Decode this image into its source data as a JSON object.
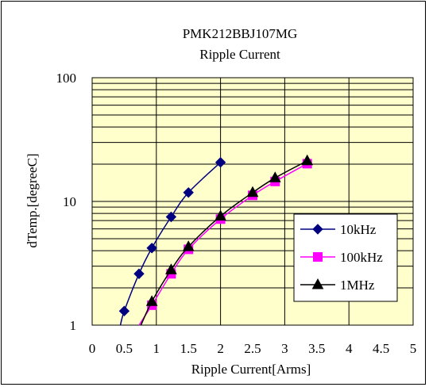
{
  "chart_data": {
    "type": "line",
    "title": "PMK212BBJ107MG",
    "subtitle": "Ripple Current",
    "xlabel": "Ripple Current[Arms]",
    "ylabel": "dTemp.[degreeC]",
    "xlim": [
      0,
      5
    ],
    "ylim": [
      1,
      100
    ],
    "y_scale": "log",
    "x_ticks": [
      "0",
      "0.5",
      "1",
      "1.5",
      "2",
      "2.5",
      "3",
      "3.5",
      "4",
      "4.5",
      "5"
    ],
    "y_ticks": [
      "1",
      "10",
      "100"
    ],
    "grid": true,
    "plot_background": "#ffffcc",
    "legend_position": "right-center",
    "series": [
      {
        "name": "10kHz",
        "marker": "diamond",
        "color": "#000080",
        "x": [
          0.5,
          0.73,
          0.93,
          1.23,
          1.5,
          2.0
        ],
        "y": [
          1.3,
          2.6,
          4.2,
          7.5,
          11.8,
          20.7
        ],
        "curve_start": [
          0.44,
          1.0
        ]
      },
      {
        "name": "100kHz",
        "marker": "square",
        "color": "#ff00ff",
        "x": [
          0.93,
          1.23,
          1.5,
          2.0,
          2.5,
          2.85,
          3.35
        ],
        "y": [
          1.45,
          2.6,
          4.1,
          7.2,
          11.2,
          14.5,
          20.2
        ],
        "curve_start": [
          0.73,
          1.0
        ]
      },
      {
        "name": "1MHz",
        "marker": "triangle",
        "color": "#000000",
        "x": [
          0.93,
          1.23,
          1.5,
          2.0,
          2.5,
          2.85,
          3.35
        ],
        "y": [
          1.55,
          2.8,
          4.3,
          7.6,
          11.8,
          15.5,
          21.3
        ],
        "curve_start": [
          0.76,
          1.0
        ]
      }
    ]
  }
}
